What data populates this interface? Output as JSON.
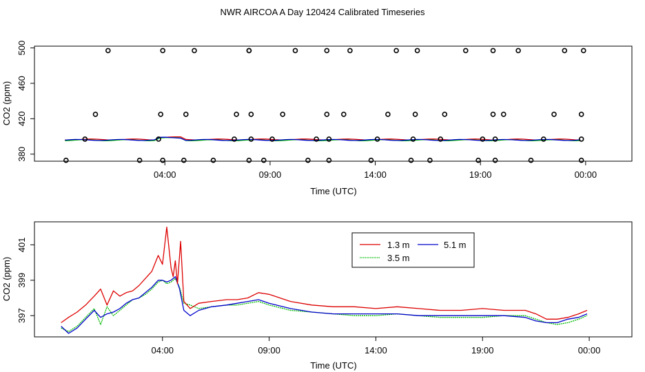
{
  "title": "NWR AIRCOA A  Day 120424  Calibrated Timeseries",
  "colors": {
    "s13": "#dd0000",
    "s35": "#00bb00",
    "s51": "#0000cc",
    "axis": "#000000"
  },
  "chart_data": [
    {
      "type": "line",
      "id": "top",
      "xlabel": "Time (UTC)",
      "ylabel": "CO2 (ppm)",
      "xlim": [
        -2.2,
        26.2
      ],
      "ylim": [
        372,
        502
      ],
      "xticks": [
        4,
        9,
        14,
        19,
        24
      ],
      "xtick_labels": [
        "04:00",
        "09:00",
        "14:00",
        "19:00",
        "00:00"
      ],
      "yticks": [
        380,
        420,
        460,
        500
      ],
      "ytick_labels": [
        "380",
        "420",
        "460",
        "500"
      ],
      "lines_value_ppm": 396,
      "points": {
        "x": [
          -0.7,
          0.2,
          0.7,
          1.3,
          2.8,
          3.7,
          3.8,
          3.9,
          3.9,
          4.9,
          5.0,
          5.4,
          6.3,
          7.3,
          7.4,
          8.0,
          8.0,
          8.0,
          8.1,
          8.1,
          8.7,
          9.1,
          9.6,
          10.2,
          10.8,
          11.2,
          11.7,
          11.7,
          11.8,
          11.8,
          12.5,
          12.8,
          13.8,
          14.1,
          14.6,
          15.0,
          15.7,
          15.8,
          15.9,
          16.0,
          16.6,
          17.1,
          17.3,
          18.3,
          18.9,
          19.1,
          19.6,
          19.6,
          19.7,
          19.7,
          20.1,
          20.8,
          21.4,
          22.0,
          22.5,
          23.0,
          23.8,
          23.8,
          23.8,
          23.9
        ],
        "y": [
          373,
          397,
          425,
          497,
          373,
          397,
          425,
          373,
          497,
          373,
          425,
          497,
          373,
          397,
          425,
          497,
          497,
          373,
          397,
          425,
          373,
          397,
          425,
          497,
          373,
          397,
          425,
          497,
          373,
          397,
          425,
          497,
          373,
          397,
          425,
          497,
          373,
          397,
          425,
          497,
          373,
          397,
          425,
          497,
          373,
          397,
          425,
          497,
          373,
          397,
          425,
          497,
          373,
          397,
          425,
          497,
          373,
          397,
          425,
          497
        ]
      }
    },
    {
      "type": "line",
      "id": "bottom",
      "xlabel": "Time (UTC)",
      "ylabel": "CO2 (ppm)",
      "xlim": [
        -2.0,
        26.0
      ],
      "ylim": [
        395.8,
        402.3
      ],
      "xticks": [
        4,
        9,
        14,
        19,
        24
      ],
      "xtick_labels": [
        "04:00",
        "09:00",
        "14:00",
        "19:00",
        "00:00"
      ],
      "yticks": [
        397,
        399,
        401
      ],
      "ytick_labels": [
        "397",
        "399",
        "401"
      ],
      "legend": {
        "position": "top-center",
        "entries": [
          "1.3 m",
          "3.5 m",
          "5.1 m"
        ]
      },
      "series": [
        {
          "name": "1.3 m",
          "x": [
            -0.75,
            -0.4,
            0,
            0.4,
            0.8,
            1.1,
            1.4,
            1.7,
            2.0,
            2.3,
            2.6,
            2.9,
            3.2,
            3.5,
            3.8,
            4.0,
            4.2,
            4.4,
            4.5,
            4.6,
            4.7,
            4.85,
            5.0,
            5.3,
            5.7,
            6.3,
            7.0,
            7.5,
            8.0,
            8.5,
            9.0,
            10,
            11,
            12,
            13,
            14,
            15,
            16,
            17,
            18,
            19,
            20,
            21,
            21.5,
            22,
            22.5,
            23,
            23.5,
            23.9
          ],
          "values": [
            396.6,
            396.9,
            397.2,
            397.6,
            398.1,
            398.5,
            397.6,
            398.4,
            398.1,
            398.3,
            398.4,
            398.7,
            399.1,
            399.5,
            400.4,
            399.9,
            402.0,
            399.7,
            399.2,
            400.1,
            398.8,
            401.2,
            397.8,
            397.4,
            397.7,
            397.8,
            397.9,
            397.9,
            398.0,
            398.3,
            398.2,
            397.8,
            397.6,
            397.5,
            397.5,
            397.4,
            397.5,
            397.4,
            397.3,
            397.3,
            397.4,
            397.3,
            397.3,
            397.1,
            396.8,
            396.8,
            396.9,
            397.1,
            397.3
          ]
        },
        {
          "name": "3.5 m",
          "x": [
            -0.75,
            -0.4,
            0,
            0.4,
            0.8,
            1.1,
            1.4,
            1.7,
            2.0,
            2.3,
            2.6,
            2.9,
            3.2,
            3.5,
            3.8,
            4.0,
            4.2,
            4.4,
            4.6,
            4.8,
            5.0,
            5.3,
            5.7,
            6.3,
            7.0,
            7.5,
            8.0,
            8.5,
            9.0,
            10,
            11,
            12,
            13,
            14,
            15,
            16,
            17,
            18,
            19,
            20,
            21,
            21.5,
            22,
            22.5,
            23,
            23.5,
            23.9
          ],
          "values": [
            396.3,
            396.1,
            396.4,
            396.9,
            397.4,
            396.5,
            397.5,
            397.0,
            397.3,
            397.6,
            397.9,
            398.0,
            398.2,
            398.5,
            398.9,
            399.0,
            398.8,
            398.9,
            399.1,
            398.6,
            397.7,
            397.6,
            397.4,
            397.5,
            397.6,
            397.6,
            397.7,
            397.8,
            397.6,
            397.3,
            397.2,
            397.1,
            397.0,
            397.0,
            397.1,
            397.0,
            396.9,
            396.9,
            396.9,
            397.0,
            397.0,
            396.8,
            396.6,
            396.5,
            396.6,
            396.8,
            397.0
          ]
        },
        {
          "name": "5.1 m",
          "x": [
            -0.75,
            -0.4,
            0,
            0.4,
            0.8,
            1.1,
            1.4,
            1.7,
            2.0,
            2.3,
            2.6,
            2.9,
            3.2,
            3.5,
            3.8,
            4.0,
            4.2,
            4.4,
            4.6,
            4.8,
            5.0,
            5.3,
            5.7,
            6.3,
            7.0,
            7.5,
            8.0,
            8.5,
            9.0,
            10,
            11,
            12,
            13,
            14,
            15,
            16,
            17,
            18,
            19,
            20,
            21,
            21.5,
            22,
            22.5,
            23,
            23.5,
            23.9
          ],
          "values": [
            396.4,
            396.0,
            396.3,
            396.8,
            397.3,
            396.9,
            397.1,
            397.2,
            397.4,
            397.7,
            397.9,
            398.0,
            398.3,
            398.6,
            399.0,
            399.0,
            398.9,
            399.0,
            399.2,
            398.5,
            397.3,
            397.0,
            397.3,
            397.5,
            397.6,
            397.7,
            397.8,
            397.9,
            397.7,
            397.4,
            397.2,
            397.1,
            397.1,
            397.1,
            397.1,
            397.0,
            397.0,
            397.0,
            397.0,
            397.0,
            396.9,
            396.7,
            396.6,
            396.6,
            396.8,
            396.9,
            397.1
          ]
        }
      ]
    }
  ]
}
